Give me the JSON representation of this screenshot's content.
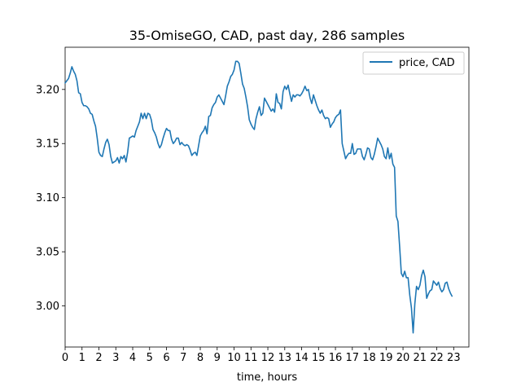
{
  "chart_data": {
    "type": "line",
    "title": "35-OmiseGO, CAD, past day, 286 samples",
    "xlabel": "time, hours",
    "ylabel": "",
    "xlim": [
      0,
      23.9
    ],
    "ylim": [
      2.962,
      3.239
    ],
    "x_ticks": [
      0,
      1,
      2,
      3,
      4,
      5,
      6,
      7,
      8,
      9,
      10,
      11,
      12,
      13,
      14,
      15,
      16,
      17,
      18,
      19,
      20,
      21,
      22,
      23
    ],
    "y_ticks": [
      3.0,
      3.05,
      3.1,
      3.15,
      3.2
    ],
    "y_tick_labels": [
      "3.00",
      "3.05",
      "3.10",
      "3.15",
      "3.20"
    ],
    "grid": false,
    "legend_position": "top-right",
    "color": "#1f77b4",
    "series": [
      {
        "name": "price, CAD",
        "points": [
          [
            0.0,
            3.206
          ],
          [
            0.1,
            3.208
          ],
          [
            0.2,
            3.21
          ],
          [
            0.3,
            3.215
          ],
          [
            0.4,
            3.221
          ],
          [
            0.5,
            3.217
          ],
          [
            0.6,
            3.214
          ],
          [
            0.7,
            3.208
          ],
          [
            0.8,
            3.197
          ],
          [
            0.9,
            3.196
          ],
          [
            1.0,
            3.188
          ],
          [
            1.1,
            3.185
          ],
          [
            1.2,
            3.185
          ],
          [
            1.3,
            3.184
          ],
          [
            1.4,
            3.182
          ],
          [
            1.5,
            3.178
          ],
          [
            1.6,
            3.177
          ],
          [
            1.7,
            3.171
          ],
          [
            1.8,
            3.166
          ],
          [
            1.9,
            3.155
          ],
          [
            2.0,
            3.142
          ],
          [
            2.1,
            3.139
          ],
          [
            2.2,
            3.138
          ],
          [
            2.3,
            3.145
          ],
          [
            2.4,
            3.151
          ],
          [
            2.5,
            3.154
          ],
          [
            2.6,
            3.149
          ],
          [
            2.7,
            3.138
          ],
          [
            2.8,
            3.132
          ],
          [
            2.9,
            3.133
          ],
          [
            3.0,
            3.134
          ],
          [
            3.1,
            3.137
          ],
          [
            3.2,
            3.132
          ],
          [
            3.3,
            3.138
          ],
          [
            3.4,
            3.136
          ],
          [
            3.5,
            3.139
          ],
          [
            3.6,
            3.133
          ],
          [
            3.7,
            3.142
          ],
          [
            3.8,
            3.155
          ],
          [
            3.9,
            3.156
          ],
          [
            4.0,
            3.157
          ],
          [
            4.1,
            3.156
          ],
          [
            4.2,
            3.162
          ],
          [
            4.3,
            3.166
          ],
          [
            4.4,
            3.17
          ],
          [
            4.5,
            3.178
          ],
          [
            4.6,
            3.173
          ],
          [
            4.7,
            3.178
          ],
          [
            4.8,
            3.173
          ],
          [
            4.9,
            3.178
          ],
          [
            5.0,
            3.177
          ],
          [
            5.1,
            3.172
          ],
          [
            5.2,
            3.163
          ],
          [
            5.3,
            3.16
          ],
          [
            5.4,
            3.156
          ],
          [
            5.5,
            3.15
          ],
          [
            5.6,
            3.146
          ],
          [
            5.7,
            3.149
          ],
          [
            5.8,
            3.155
          ],
          [
            5.9,
            3.16
          ],
          [
            6.0,
            3.164
          ],
          [
            6.1,
            3.162
          ],
          [
            6.2,
            3.162
          ],
          [
            6.3,
            3.154
          ],
          [
            6.4,
            3.15
          ],
          [
            6.5,
            3.152
          ],
          [
            6.6,
            3.155
          ],
          [
            6.7,
            3.155
          ],
          [
            6.8,
            3.149
          ],
          [
            6.9,
            3.151
          ],
          [
            7.0,
            3.149
          ],
          [
            7.1,
            3.148
          ],
          [
            7.2,
            3.149
          ],
          [
            7.3,
            3.148
          ],
          [
            7.4,
            3.144
          ],
          [
            7.5,
            3.139
          ],
          [
            7.6,
            3.141
          ],
          [
            7.7,
            3.142
          ],
          [
            7.8,
            3.139
          ],
          [
            7.9,
            3.148
          ],
          [
            8.0,
            3.157
          ],
          [
            8.1,
            3.16
          ],
          [
            8.2,
            3.162
          ],
          [
            8.3,
            3.166
          ],
          [
            8.4,
            3.159
          ],
          [
            8.5,
            3.175
          ],
          [
            8.6,
            3.176
          ],
          [
            8.7,
            3.183
          ],
          [
            8.8,
            3.186
          ],
          [
            8.9,
            3.188
          ],
          [
            9.0,
            3.193
          ],
          [
            9.1,
            3.195
          ],
          [
            9.2,
            3.192
          ],
          [
            9.3,
            3.189
          ],
          [
            9.4,
            3.186
          ],
          [
            9.5,
            3.194
          ],
          [
            9.6,
            3.203
          ],
          [
            9.7,
            3.207
          ],
          [
            9.8,
            3.212
          ],
          [
            9.9,
            3.214
          ],
          [
            10.0,
            3.218
          ],
          [
            10.1,
            3.226
          ],
          [
            10.2,
            3.226
          ],
          [
            10.3,
            3.224
          ],
          [
            10.4,
            3.215
          ],
          [
            10.5,
            3.205
          ],
          [
            10.6,
            3.201
          ],
          [
            10.7,
            3.193
          ],
          [
            10.8,
            3.184
          ],
          [
            10.9,
            3.172
          ],
          [
            11.0,
            3.168
          ],
          [
            11.1,
            3.165
          ],
          [
            11.2,
            3.163
          ],
          [
            11.3,
            3.173
          ],
          [
            11.4,
            3.179
          ],
          [
            11.5,
            3.184
          ],
          [
            11.6,
            3.176
          ],
          [
            11.7,
            3.178
          ],
          [
            11.8,
            3.192
          ],
          [
            11.9,
            3.189
          ],
          [
            12.0,
            3.186
          ],
          [
            12.1,
            3.183
          ],
          [
            12.2,
            3.18
          ],
          [
            12.3,
            3.182
          ],
          [
            12.4,
            3.179
          ],
          [
            12.5,
            3.196
          ],
          [
            12.6,
            3.188
          ],
          [
            12.7,
            3.187
          ],
          [
            12.8,
            3.182
          ],
          [
            12.9,
            3.198
          ],
          [
            13.0,
            3.203
          ],
          [
            13.1,
            3.2
          ],
          [
            13.2,
            3.204
          ],
          [
            13.3,
            3.196
          ],
          [
            13.4,
            3.189
          ],
          [
            13.5,
            3.195
          ],
          [
            13.6,
            3.193
          ],
          [
            13.7,
            3.195
          ],
          [
            13.8,
            3.195
          ],
          [
            13.9,
            3.194
          ],
          [
            14.0,
            3.196
          ],
          [
            14.1,
            3.199
          ],
          [
            14.2,
            3.203
          ],
          [
            14.3,
            3.199
          ],
          [
            14.4,
            3.2
          ],
          [
            14.5,
            3.192
          ],
          [
            14.6,
            3.187
          ],
          [
            14.7,
            3.195
          ],
          [
            14.8,
            3.19
          ],
          [
            14.9,
            3.185
          ],
          [
            15.0,
            3.181
          ],
          [
            15.1,
            3.178
          ],
          [
            15.2,
            3.181
          ],
          [
            15.3,
            3.176
          ],
          [
            15.4,
            3.173
          ],
          [
            15.5,
            3.174
          ],
          [
            15.6,
            3.173
          ],
          [
            15.7,
            3.165
          ],
          [
            15.8,
            3.168
          ],
          [
            15.9,
            3.17
          ],
          [
            16.0,
            3.174
          ],
          [
            16.1,
            3.176
          ],
          [
            16.2,
            3.177
          ],
          [
            16.3,
            3.181
          ],
          [
            16.4,
            3.15
          ],
          [
            16.5,
            3.143
          ],
          [
            16.6,
            3.136
          ],
          [
            16.7,
            3.139
          ],
          [
            16.8,
            3.141
          ],
          [
            16.9,
            3.141
          ],
          [
            17.0,
            3.15
          ],
          [
            17.1,
            3.14
          ],
          [
            17.2,
            3.141
          ],
          [
            17.3,
            3.145
          ],
          [
            17.4,
            3.145
          ],
          [
            17.5,
            3.145
          ],
          [
            17.6,
            3.138
          ],
          [
            17.7,
            3.135
          ],
          [
            17.8,
            3.14
          ],
          [
            17.9,
            3.146
          ],
          [
            18.0,
            3.145
          ],
          [
            18.1,
            3.137
          ],
          [
            18.2,
            3.135
          ],
          [
            18.3,
            3.14
          ],
          [
            18.4,
            3.147
          ],
          [
            18.5,
            3.155
          ],
          [
            18.6,
            3.152
          ],
          [
            18.7,
            3.149
          ],
          [
            18.8,
            3.145
          ],
          [
            18.9,
            3.138
          ],
          [
            19.0,
            3.136
          ],
          [
            19.1,
            3.146
          ],
          [
            19.2,
            3.136
          ],
          [
            19.3,
            3.141
          ],
          [
            19.4,
            3.131
          ],
          [
            19.5,
            3.128
          ],
          [
            19.6,
            3.083
          ],
          [
            19.7,
            3.078
          ],
          [
            19.8,
            3.055
          ],
          [
            19.9,
            3.03
          ],
          [
            20.0,
            3.027
          ],
          [
            20.1,
            3.032
          ],
          [
            20.2,
            3.026
          ],
          [
            20.3,
            3.026
          ],
          [
            20.4,
            3.01
          ],
          [
            20.5,
            2.998
          ],
          [
            20.6,
            2.975
          ],
          [
            20.7,
            3.002
          ],
          [
            20.8,
            3.018
          ],
          [
            20.9,
            3.015
          ],
          [
            21.0,
            3.019
          ],
          [
            21.1,
            3.028
          ],
          [
            21.2,
            3.033
          ],
          [
            21.3,
            3.027
          ],
          [
            21.4,
            3.007
          ],
          [
            21.5,
            3.011
          ],
          [
            21.6,
            3.014
          ],
          [
            21.7,
            3.015
          ],
          [
            21.8,
            3.023
          ],
          [
            21.9,
            3.021
          ],
          [
            22.0,
            3.019
          ],
          [
            22.1,
            3.022
          ],
          [
            22.2,
            3.016
          ],
          [
            22.3,
            3.013
          ],
          [
            22.4,
            3.015
          ],
          [
            22.5,
            3.021
          ],
          [
            22.6,
            3.022
          ],
          [
            22.7,
            3.016
          ],
          [
            22.8,
            3.012
          ],
          [
            22.9,
            3.009
          ]
        ]
      }
    ]
  }
}
